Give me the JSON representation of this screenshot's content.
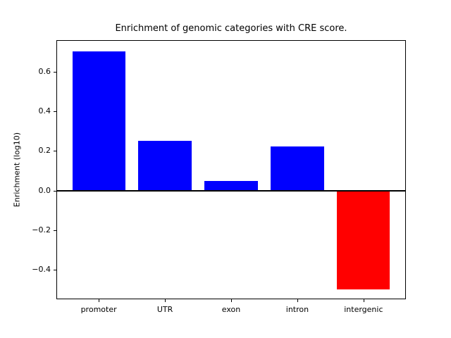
{
  "chart_data": {
    "type": "bar",
    "title": "Enrichment of genomic categories with CRE score.",
    "xlabel": "",
    "ylabel": "Enrichment (log10)",
    "categories": [
      "promoter",
      "UTR",
      "exon",
      "intron",
      "intergenic"
    ],
    "values": [
      0.705,
      0.253,
      0.049,
      0.224,
      -0.499
    ],
    "bar_colors": [
      "#0000ff",
      "#0000ff",
      "#0000ff",
      "#0000ff",
      "#ff0000"
    ],
    "positive_color": "#0000ff",
    "negative_color": "#ff0000",
    "yticks": [
      0.6,
      0.4,
      0.2,
      0.0,
      -0.2,
      -0.4
    ],
    "ytick_labels": [
      "0.6",
      "0.4",
      "0.2",
      "0.0",
      "−0.2",
      "−0.4"
    ],
    "ylim": [
      -0.55,
      0.761
    ],
    "xlim": [
      -0.64,
      4.64
    ],
    "bar_width": 0.8,
    "grid": false,
    "legend": null,
    "zero_line": {
      "value": 0.0,
      "color": "#000000",
      "linewidth": 2
    }
  }
}
